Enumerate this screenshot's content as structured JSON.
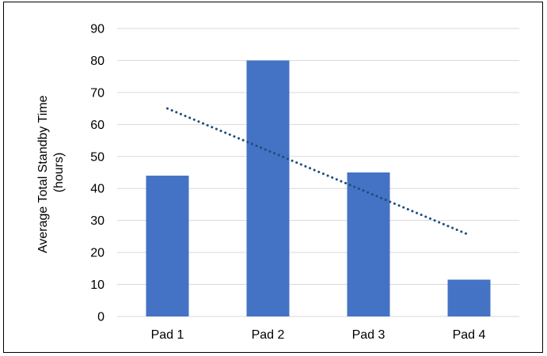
{
  "chart_data": {
    "type": "bar",
    "title": "",
    "xlabel": "",
    "ylabel_lines": [
      "Average Total Standby Time",
      "(hours)"
    ],
    "categories": [
      "Pad 1",
      "Pad 2",
      "Pad 3",
      "Pad 4"
    ],
    "series": [
      {
        "values": [
          44,
          80,
          45,
          11.5
        ]
      }
    ],
    "trendline": {
      "type": "linear",
      "style": "dotted",
      "start": 65,
      "end": 25.5
    },
    "ylim": [
      0,
      90
    ],
    "yticks": [
      0,
      10,
      20,
      30,
      40,
      50,
      60,
      70,
      80,
      90
    ],
    "grid": "horizontal",
    "legend": "none",
    "colors": {
      "bar": "#4472C4",
      "trendline": "#1F4E79",
      "grid": "#D9D9D9",
      "text": "#000000"
    }
  }
}
